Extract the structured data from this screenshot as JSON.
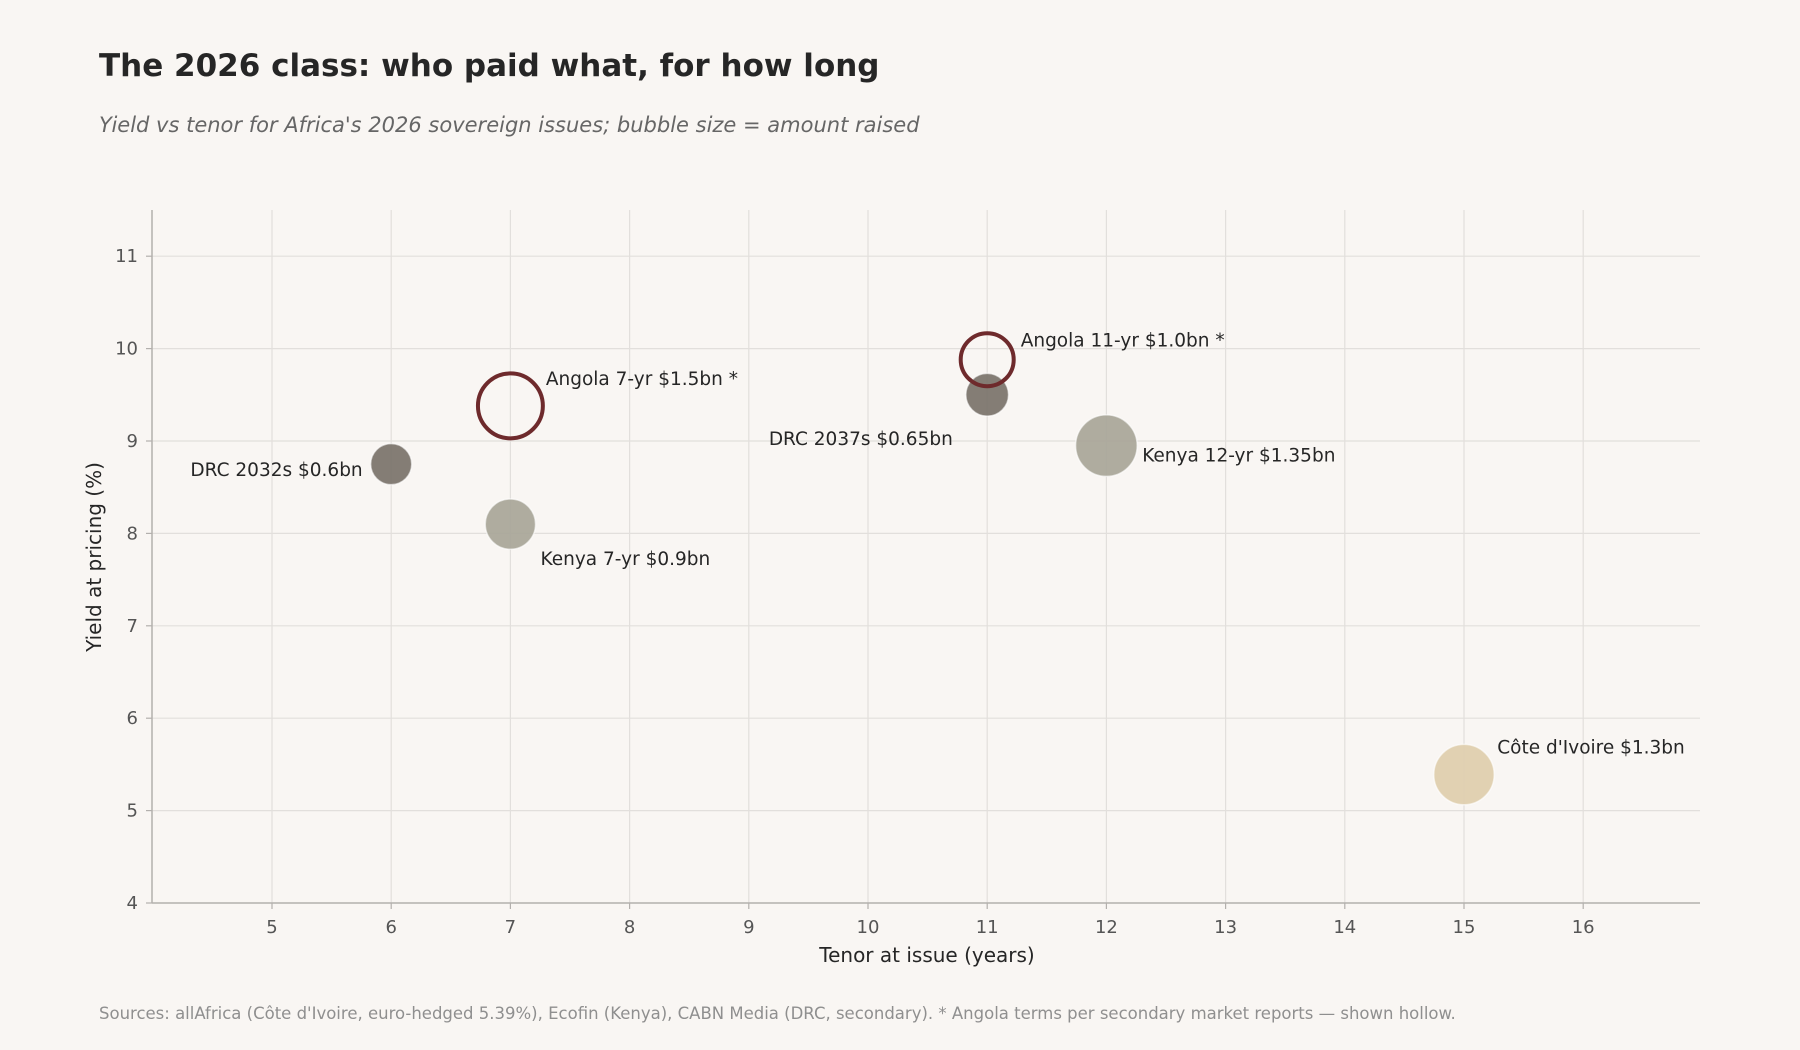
{
  "title": "The 2026 class: who paid what, for how long",
  "subtitle": "Yield vs tenor for Africa's 2026 sovereign issues; bubble size = amount raised",
  "footnote": "Sources: allAfrica (Côte d'Ivoire, euro-hedged 5.39%), Ecofin (Kenya), CABN Media (DRC, secondary). * Angola terms per secondary market reports — shown hollow.",
  "chart_data": {
    "type": "scatter",
    "xlabel": "Tenor at issue (years)",
    "ylabel": "Yield at pricing (%)",
    "xlim": [
      4,
      17
    ],
    "ylim": [
      4,
      11.5
    ],
    "xticks": [
      5,
      6,
      7,
      8,
      9,
      10,
      11,
      12,
      13,
      14,
      15,
      16
    ],
    "yticks": [
      4,
      5,
      6,
      7,
      8,
      9,
      10,
      11
    ],
    "grid": true,
    "bubble_size": "amount raised (USD bn)",
    "colors": {
      "drc": "#7a726a",
      "kenya": "#a8a598",
      "angola": "#6e2a2c",
      "cote_divoire": "#decdac",
      "grid": "#e2dfdc",
      "axis": "#b3b0ad"
    },
    "points": [
      {
        "issuer": "DRC",
        "label": "DRC 2032s $0.6bn",
        "x": 6,
        "y": 8.75,
        "amount_bn": 0.6,
        "color": "#7a726a",
        "hollow": false,
        "label_pos": "left"
      },
      {
        "issuer": "Kenya",
        "label": "Kenya 7-yr $0.9bn",
        "x": 7,
        "y": 8.1,
        "amount_bn": 0.9,
        "color": "#a8a598",
        "hollow": false,
        "label_pos": "below-right"
      },
      {
        "issuer": "Angola",
        "label": "Angola 7-yr $1.5bn *",
        "x": 7,
        "y": 9.38,
        "amount_bn": 1.5,
        "color": "#6e2a2c",
        "hollow": true,
        "label_pos": "above-right"
      },
      {
        "issuer": "DRC",
        "label": "DRC 2037s $0.65bn",
        "x": 11,
        "y": 9.5,
        "amount_bn": 0.65,
        "color": "#7a726a",
        "hollow": false,
        "label_pos": "below-left"
      },
      {
        "issuer": "Angola",
        "label": "Angola 11-yr $1.0bn *",
        "x": 11,
        "y": 9.88,
        "amount_bn": 1.0,
        "color": "#6e2a2c",
        "hollow": true,
        "label_pos": "above-right"
      },
      {
        "issuer": "Kenya",
        "label": "Kenya 12-yr $1.35bn",
        "x": 12,
        "y": 8.95,
        "amount_bn": 1.35,
        "color": "#a8a598",
        "hollow": false,
        "label_pos": "right"
      },
      {
        "issuer": "Côte d'Ivoire",
        "label": "Côte d'Ivoire $1.3bn",
        "x": 15,
        "y": 5.39,
        "amount_bn": 1.3,
        "color": "#decdac",
        "hollow": false,
        "label_pos": "above-right"
      }
    ]
  }
}
